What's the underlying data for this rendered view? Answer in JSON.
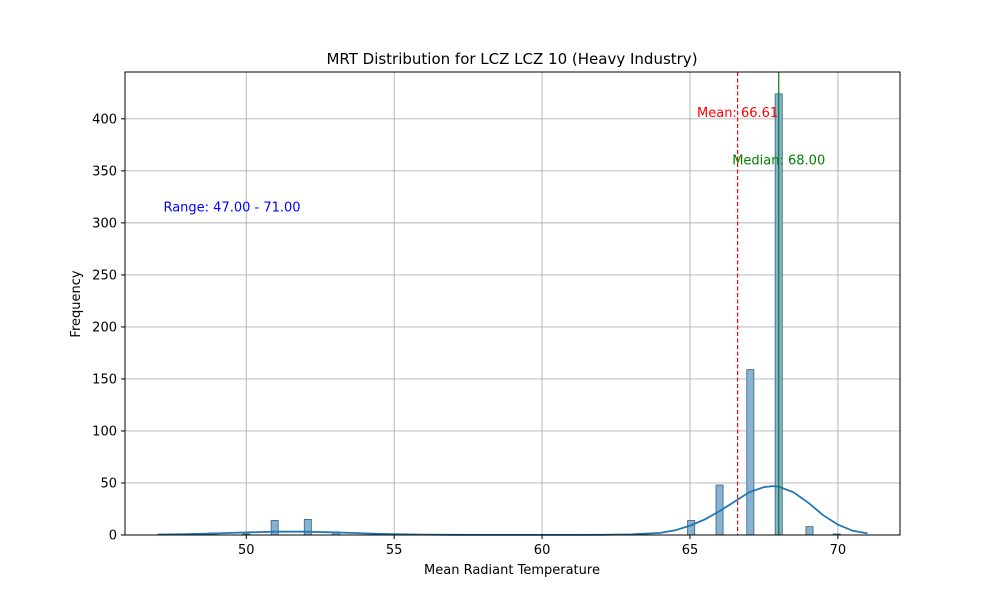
{
  "chart_data": {
    "type": "bar",
    "subtype": "histogram-with-kde",
    "title": "MRT Distribution for LCZ LCZ 10 (Heavy Industry)",
    "xlabel": "Mean Radiant Temperature",
    "ylabel": "Frequency",
    "xlim": [
      45.9,
      72.1
    ],
    "ylim": [
      0,
      445
    ],
    "xticks": [
      50,
      55,
      60,
      65,
      70
    ],
    "yticks": [
      0,
      50,
      100,
      150,
      200,
      250,
      300,
      350,
      400
    ],
    "grid": true,
    "bin_width": 0.24,
    "bars": [
      {
        "x": 48.88,
        "count": 2
      },
      {
        "x": 50.0,
        "count": 1
      },
      {
        "x": 50.96,
        "count": 14
      },
      {
        "x": 52.08,
        "count": 15
      },
      {
        "x": 53.04,
        "count": 3
      },
      {
        "x": 65.04,
        "count": 14
      },
      {
        "x": 66.0,
        "count": 48
      },
      {
        "x": 67.04,
        "count": 159
      },
      {
        "x": 68.0,
        "count": 424
      },
      {
        "x": 69.04,
        "count": 8
      },
      {
        "x": 69.96,
        "count": 1
      }
    ],
    "kde": {
      "x": [
        47,
        48,
        49,
        50,
        51,
        52,
        53,
        54,
        55,
        56,
        57,
        58,
        59,
        60,
        61,
        62,
        63,
        64,
        64.5,
        65,
        65.5,
        66,
        66.5,
        67,
        67.5,
        67.8,
        68,
        68.5,
        69,
        69.5,
        70,
        70.5,
        71
      ],
      "y": [
        0.5,
        0.8,
        1.5,
        2.5,
        3.2,
        3.2,
        2.5,
        1.5,
        0.8,
        0.4,
        0.2,
        0.1,
        0.1,
        0.1,
        0.1,
        0.2,
        0.6,
        2.0,
        4.5,
        9,
        15,
        23,
        32,
        41,
        46,
        47,
        46.5,
        41,
        31,
        19,
        10,
        4,
        1.5
      ]
    },
    "mean": {
      "value": 66.61,
      "label": "Mean: 66.61",
      "color": "#ff0000"
    },
    "median": {
      "value": 68.0,
      "label": "Median: 68.00",
      "color": "#008000"
    },
    "range": {
      "label": "Range: 47.00 - 71.00",
      "color": "#0000ff"
    },
    "colors": {
      "bar_fill": "#86b2d3",
      "bar_edge": "#3f5f78",
      "kde": "#1f77b4",
      "grid": "#b0b0b0"
    }
  }
}
